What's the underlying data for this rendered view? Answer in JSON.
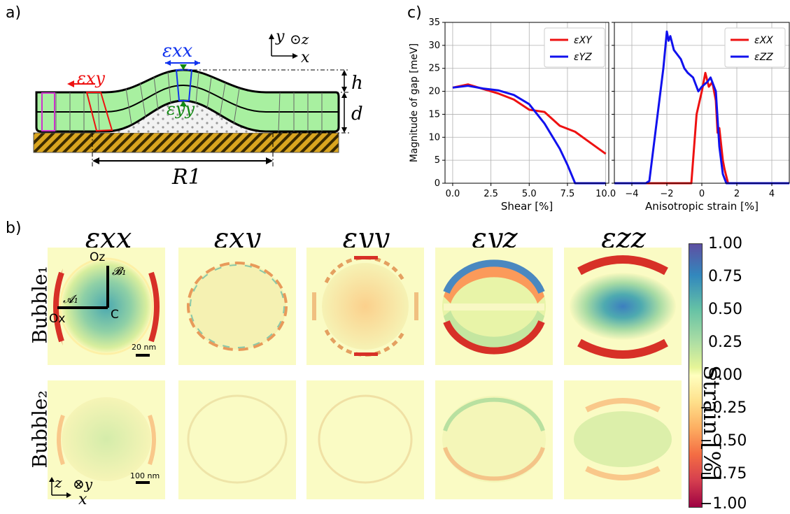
{
  "figure": {
    "panel_a_label": "a)",
    "panel_b_label": "b)",
    "panel_c_label": "c)"
  },
  "schematic": {
    "eps_xx": "εxx",
    "eps_xy": "εxy",
    "eps_yy": "εyy",
    "h": "h",
    "d": "d",
    "R1": "R1",
    "axis_y": "y",
    "axis_z": "⊙z",
    "axis_x": "x",
    "colors": {
      "green": "#a8f0a0",
      "red": "#ee1111",
      "blue": "#1133ee",
      "dkgreen": "#118811",
      "substrate": "#d9a520",
      "magenta": "#cc33cc"
    }
  },
  "maps": {
    "titles": [
      "εxx",
      "εxy",
      "εyy",
      "εyz",
      "εzz"
    ],
    "row_labels": [
      "Bubble₁",
      "Bubble₂"
    ],
    "annotations": {
      "Oz": "Oz",
      "Ox": "Ox",
      "B1": "𝓑₁",
      "A1": "𝓐₁",
      "C": "C"
    },
    "scalebar1": "20 nm",
    "scalebar2": "100 nm",
    "axes2": {
      "z": "z",
      "y": "⊗y",
      "x": "x"
    },
    "colormap": "Spectral"
  },
  "colorbar": {
    "label": "Strain [%]",
    "ticks": [
      "1.00",
      "0.75",
      "0.50",
      "0.25",
      "0.00",
      "−0.25",
      "−0.50",
      "−0.75",
      "−1.00"
    ]
  },
  "chart_data": [
    {
      "type": "line",
      "xlabel": "Shear [%]",
      "ylabel": "Magnitude of gap [meV]",
      "xlim": [
        -0.5,
        10.2
      ],
      "ylim": [
        0,
        35
      ],
      "xticks": [
        "0.0",
        "2.5",
        "5.0",
        "7.5",
        "10.0"
      ],
      "xtick_values": [
        0,
        2.5,
        5,
        7.5,
        10
      ],
      "yticks": [
        "0",
        "5",
        "10",
        "15",
        "20",
        "25",
        "30",
        "35"
      ],
      "ytick_values": [
        0,
        5,
        10,
        15,
        20,
        25,
        30,
        35
      ],
      "grid": true,
      "legend_position": "top-right",
      "series": [
        {
          "name": "εXY",
          "color": "#ee1111",
          "x": [
            0,
            1,
            2,
            3,
            4,
            5,
            6,
            7,
            8,
            9,
            10
          ],
          "y": [
            20.8,
            21.5,
            20.5,
            19.5,
            18.2,
            16.0,
            15.5,
            12.5,
            11.2,
            8.8,
            6.4
          ]
        },
        {
          "name": "εYZ",
          "color": "#1111ee",
          "x": [
            0,
            1,
            2,
            3,
            4,
            5,
            6,
            7,
            7.5,
            8,
            9,
            10
          ],
          "y": [
            20.8,
            21.2,
            20.6,
            20.2,
            19.2,
            17.2,
            13.0,
            7.5,
            4.0,
            0,
            0,
            0
          ]
        }
      ]
    },
    {
      "type": "line",
      "xlabel": "Anisotropic strain [%]",
      "ylabel": "",
      "xlim": [
        -5,
        5
      ],
      "ylim": [
        0,
        35
      ],
      "xticks": [
        "−4",
        "−2",
        "0",
        "2",
        "4"
      ],
      "xtick_values": [
        -4,
        -2,
        0,
        2,
        4
      ],
      "yticks": [],
      "ytick_values": [
        0,
        5,
        10,
        15,
        20,
        25,
        30,
        35
      ],
      "grid": true,
      "legend_position": "top-right",
      "series": [
        {
          "name": "εXX",
          "color": "#ee1111",
          "x": [
            -5,
            -1,
            -0.6,
            -0.3,
            0,
            0.2,
            0.4,
            0.6,
            0.8,
            0.9,
            1.0,
            1.2,
            1.3,
            1.5,
            5
          ],
          "y": [
            0,
            0,
            0,
            15,
            20,
            24,
            21,
            22,
            18,
            11,
            12,
            5,
            3,
            0,
            0
          ]
        },
        {
          "name": "εZZ",
          "color": "#1111ee",
          "x": [
            -5,
            -3.2,
            -3,
            -2.2,
            -2,
            -1.9,
            -1.8,
            -1.6,
            -1.4,
            -1.2,
            -1.0,
            -0.8,
            -0.5,
            -0.2,
            0,
            0.3,
            0.5,
            0.8,
            1.0,
            1.2,
            1.4,
            5
          ],
          "y": [
            0,
            0,
            0.5,
            25,
            33,
            31,
            32,
            29,
            28,
            27,
            25,
            24,
            23,
            20,
            21,
            22,
            23,
            20,
            8,
            2,
            0,
            0
          ]
        }
      ]
    }
  ]
}
